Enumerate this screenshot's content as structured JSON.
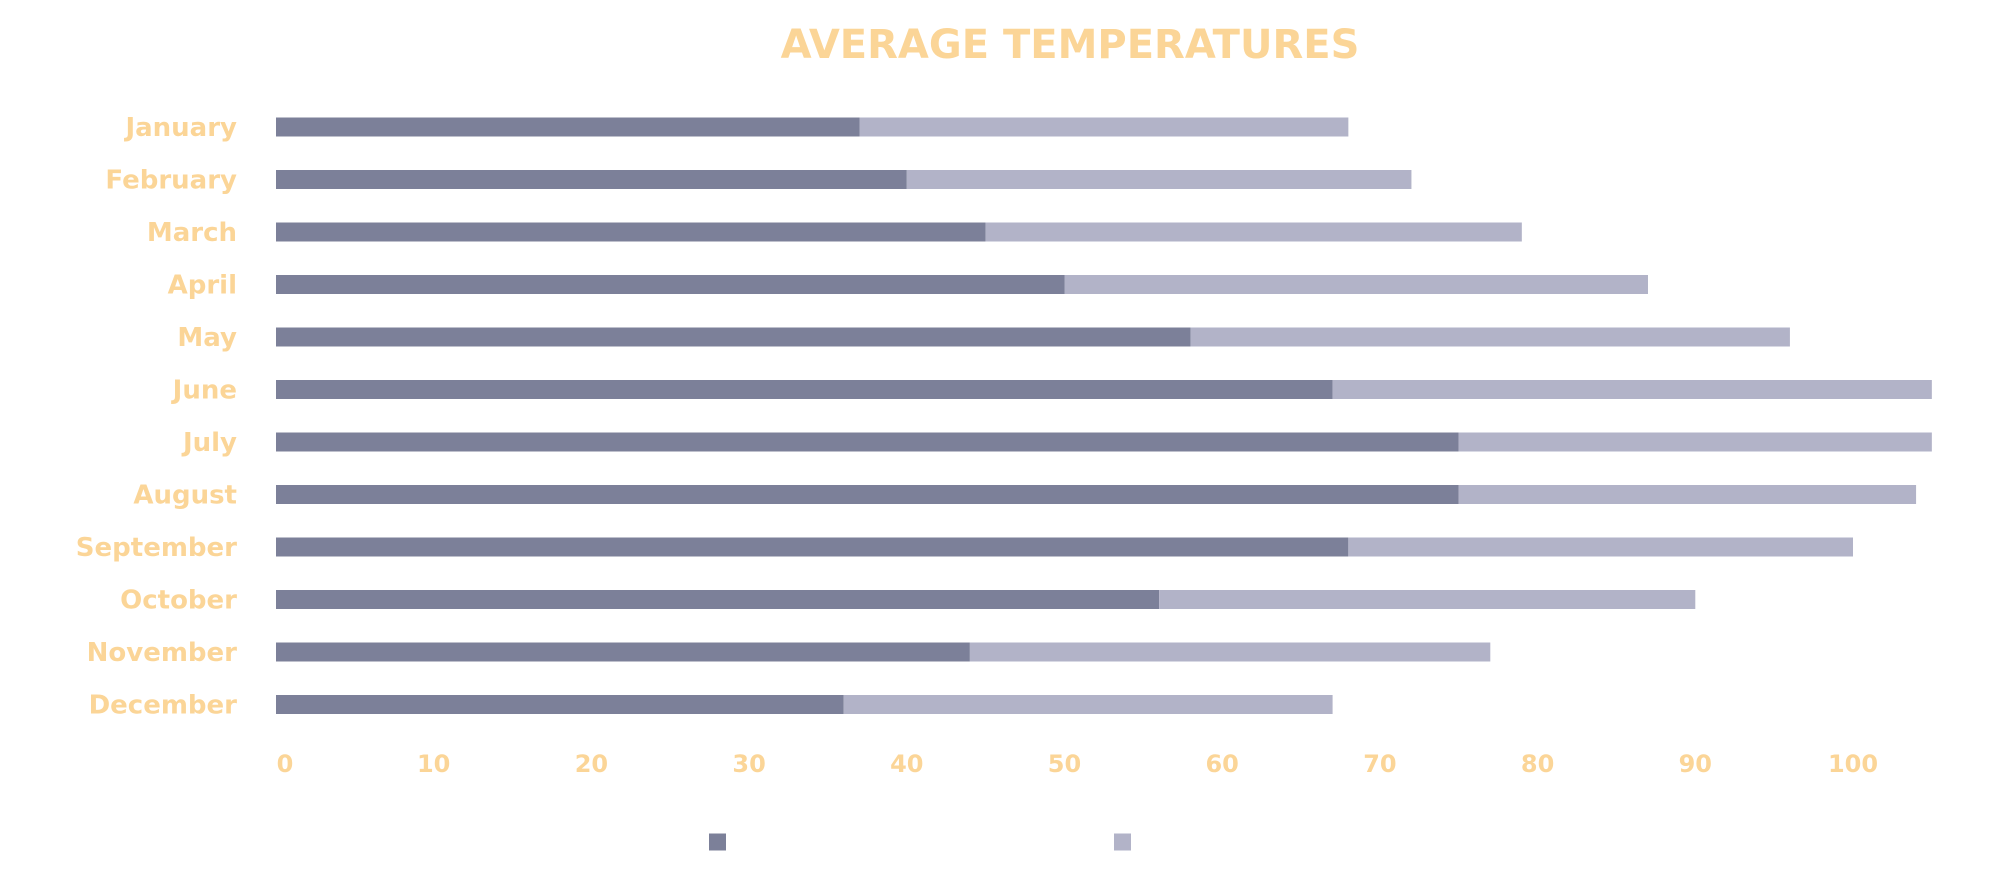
{
  "chart_data": {
    "type": "bar",
    "orientation": "horizontal",
    "stacked": true,
    "title": "AVERAGE TEMPERATURES",
    "xlabel": "",
    "ylabel": "",
    "categories": [
      "January",
      "February",
      "March",
      "April",
      "May",
      "June",
      "July",
      "August",
      "September",
      "October",
      "November",
      "December"
    ],
    "series": [
      {
        "color": "#7c8099",
        "values": [
          37,
          40,
          45,
          50,
          58,
          67,
          75,
          75,
          68,
          56,
          44,
          36
        ]
      },
      {
        "color": "#b2b3c8",
        "values": [
          31,
          32,
          34,
          37,
          38,
          38,
          30,
          29,
          32,
          34,
          33,
          31
        ]
      }
    ],
    "xlim": [
      0,
      105
    ],
    "xticks": [
      0,
      10,
      20,
      30,
      40,
      50,
      60,
      70,
      80,
      90,
      100
    ],
    "grid": false,
    "legend": "bottom-center"
  },
  "colors": {
    "text": "#fbd597"
  }
}
